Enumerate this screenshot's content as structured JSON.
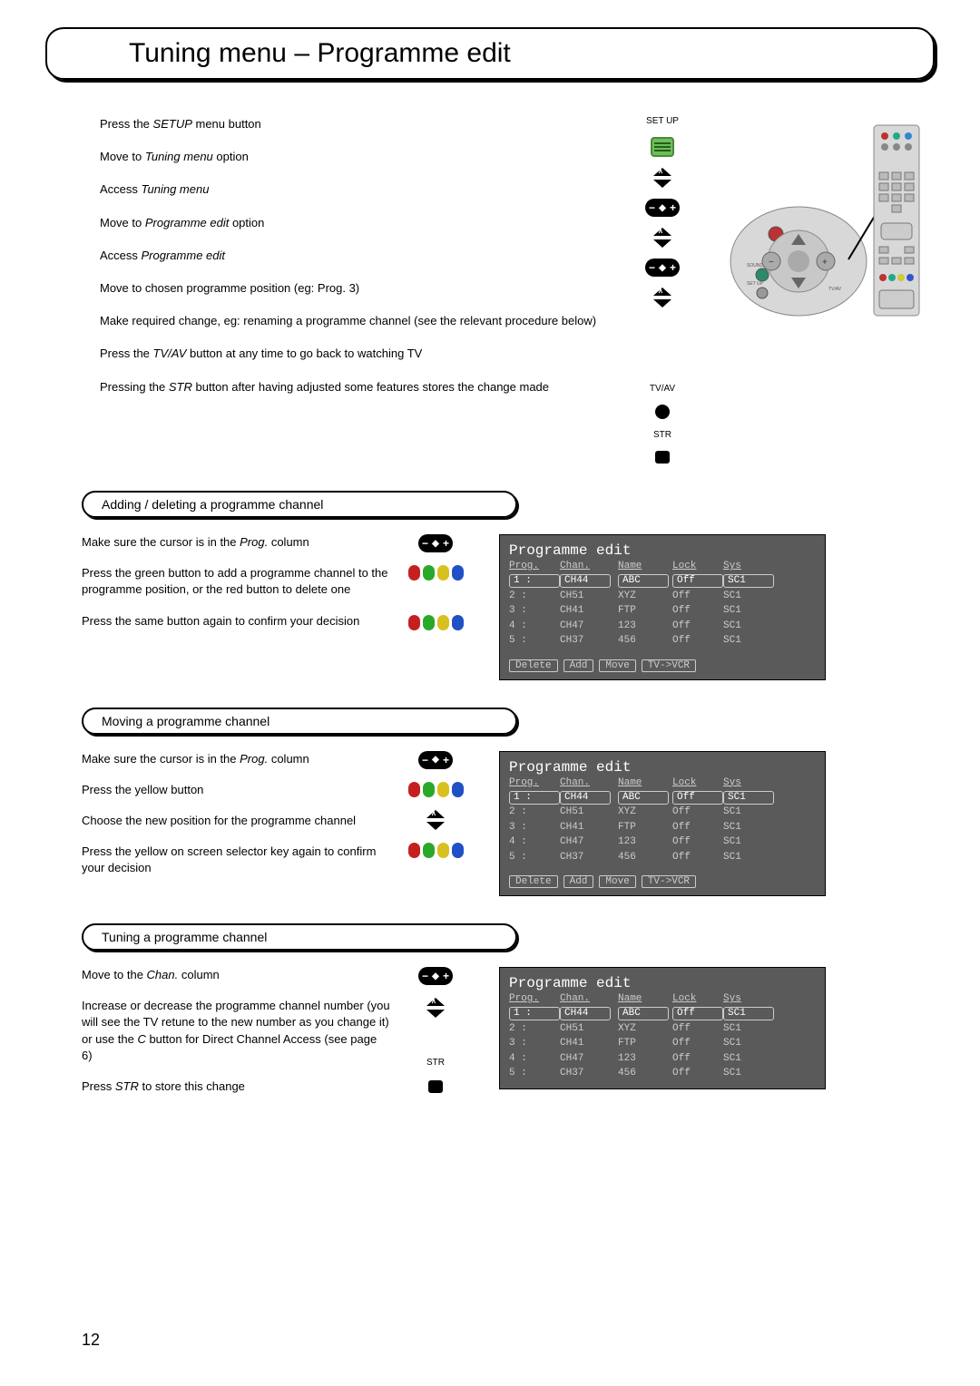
{
  "page_number": "12",
  "title": "Tuning menu – Programme edit",
  "steps": [
    {
      "pre": "Press the ",
      "em": "SETUP",
      "post": " menu button"
    },
    {
      "pre": "Move to ",
      "em": "Tuning menu",
      "post": " option"
    },
    {
      "pre": "Access ",
      "em": "Tuning menu",
      "post": ""
    },
    {
      "pre": "Move to ",
      "em": "Programme edit",
      "post": " option"
    },
    {
      "pre": "Access ",
      "em": "Programme edit",
      "post": ""
    },
    {
      "pre": "Move to chosen programme position (eg: Prog. 3)",
      "em": "",
      "post": ""
    },
    {
      "pre": "Make required change, eg: renaming a programme channel (see the relevant procedure below)",
      "em": "",
      "post": ""
    },
    {
      "pre": "Press the ",
      "em": "TV/AV",
      "post": " button at any time to go back to watching TV"
    },
    {
      "pre": "Pressing the ",
      "em": "STR",
      "post": " button after having adjusted some features stores the change made"
    }
  ],
  "button_labels": {
    "setup": "SET UP",
    "tvav": "TV/AV",
    "str": "STR"
  },
  "sections": {
    "add": {
      "header": "Adding / deleting a programme channel",
      "lines": [
        {
          "pre": "Make sure the cursor is in the ",
          "em": "Prog.",
          "post": " column"
        },
        {
          "pre": "Press the green button to add a programme channel to the programme position, or the red button to delete one",
          "em": "",
          "post": ""
        },
        {
          "pre": "Press the same button again to confirm your decision",
          "em": "",
          "post": ""
        }
      ]
    },
    "move": {
      "header": "Moving a programme channel",
      "lines": [
        {
          "pre": "Make sure the cursor is in the ",
          "em": "Prog.",
          "post": " column"
        },
        {
          "pre": "Press the yellow button",
          "em": "",
          "post": ""
        },
        {
          "pre": "Choose the new position for the programme channel",
          "em": "",
          "post": ""
        },
        {
          "pre": "Press the yellow on screen selector key again to confirm your decision",
          "em": "",
          "post": ""
        }
      ]
    },
    "tune": {
      "header": "Tuning a programme channel",
      "lines": [
        {
          "pre": "Move to the ",
          "em": "Chan.",
          "post": " column"
        },
        {
          "pre": "Increase or decrease the programme channel number (you will see the TV retune to the new number as you change it) or use the ",
          "em": "C",
          "post": " button for Direct Channel Access (see page 6)"
        },
        {
          "pre": "Press ",
          "em": "STR",
          "post": " to store this change"
        }
      ]
    }
  },
  "osd": {
    "title": "Programme edit",
    "headers": [
      "Prog.",
      "Chan.",
      "Name",
      "Lock",
      "Sys"
    ],
    "rows": [
      {
        "p": "1 :",
        "c": "CH44",
        "n": "ABC",
        "l": "Off",
        "s": "SC1",
        "sel": true
      },
      {
        "p": "2 :",
        "c": "CH51",
        "n": "XYZ",
        "l": "Off",
        "s": "SC1",
        "sel": false
      },
      {
        "p": "3 :",
        "c": "CH41",
        "n": "FTP",
        "l": "Off",
        "s": "SC1",
        "sel": false
      },
      {
        "p": "4 :",
        "c": "CH47",
        "n": "123",
        "l": "Off",
        "s": "SC1",
        "sel": false
      },
      {
        "p": "5 :",
        "c": "CH37",
        "n": "456",
        "l": "Off",
        "s": "SC1",
        "sel": false
      }
    ],
    "rows_short": [
      {
        "p": "1 :",
        "c": "CH44",
        "n": "ABC",
        "l": "Off",
        "s": "SC1",
        "sel": true
      },
      {
        "p": "2 :",
        "c": "CH51",
        "n": "XYZ",
        "l": "Off",
        "s": "SC1",
        "sel": false
      },
      {
        "p": "3 :",
        "c": "CH41",
        "n": "FTP",
        "l": "Off",
        "s": "SC1",
        "sel": false
      },
      {
        "p": "4 :",
        "c": "CH47",
        "n": "123",
        "l": "Off",
        "s": "SC1",
        "sel": false
      },
      {
        "p": "5 :",
        "c": "CH37",
        "n": "456",
        "l": "Off",
        "s": "SC1",
        "sel": false
      }
    ],
    "footer": [
      "Delete",
      "Add",
      "Move",
      "TV->VCR"
    ]
  },
  "colors": {
    "osd_bg": "#5a5a5a",
    "osd_fg": "#cccccc",
    "osd_title": "#ffffff",
    "red": "#c52020",
    "green": "#2aa82a",
    "yellow": "#d8c020",
    "blue": "#2050c5",
    "setup_green": "#6abf5a"
  }
}
